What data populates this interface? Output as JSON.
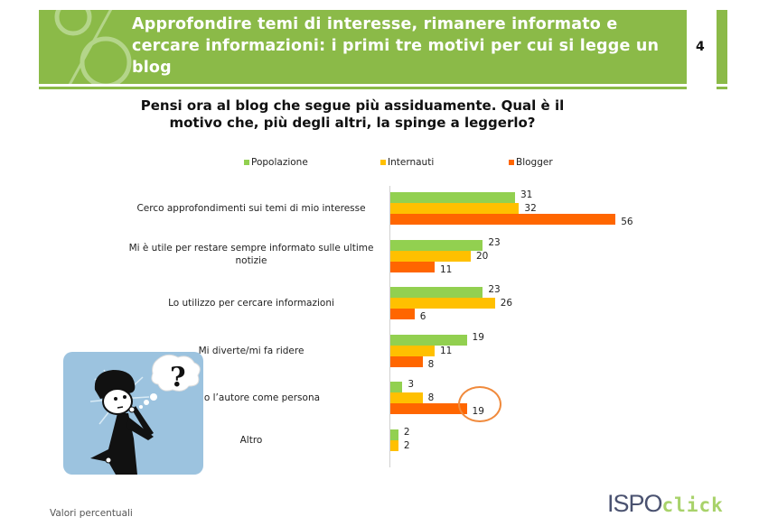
{
  "header": {
    "title": "Approfondire temi di interesse, rimanere informato e cercare informazioni: i primi tre motivi per cui si legge un blog",
    "page_number": "4",
    "accent_color": "#8bba48"
  },
  "question": "Pensi ora al blog che segue più assiduamente. Qual è il motivo che, più degli altri, la spinge a leggerlo?",
  "legend": [
    {
      "label": "Popolazione",
      "color": "#92d050"
    },
    {
      "label": "Internauti",
      "color": "#ffc000"
    },
    {
      "label": "Blogger",
      "color": "#ff6600"
    }
  ],
  "footer": {
    "note": "Valori percentuali",
    "logo_left": "ISPO",
    "logo_right": "click"
  },
  "chart_data": {
    "type": "bar",
    "orientation": "horizontal",
    "title": "Pensi ora al blog che segue più assiduamente. Qual è il motivo che, più degli altri, la spinge a leggerlo?",
    "xlabel": "",
    "ylabel": "",
    "unit": "Valori percentuali",
    "categories": [
      "Cerco approfondimenti sui temi di mio interesse",
      "Mi è utile per restare sempre informato sulle ultime notizie",
      "Lo utilizzo per cercare informazioni",
      "Mi diverte/mi fa ridere",
      "Stimo l’autore come persona",
      "Altro"
    ],
    "series": [
      {
        "name": "Popolazione",
        "color": "#92d050",
        "values": [
          31,
          23,
          23,
          19,
          3,
          2
        ]
      },
      {
        "name": "Internauti",
        "color": "#ffc000",
        "values": [
          32,
          20,
          26,
          11,
          8,
          2
        ]
      },
      {
        "name": "Blogger",
        "color": "#ff6600",
        "values": [
          56,
          11,
          6,
          8,
          19,
          null
        ]
      }
    ],
    "legend_position": "top",
    "grid": false,
    "data_labels": true,
    "annotations": [
      {
        "type": "circle",
        "target": "Blogger - Stimo l’autore come persona",
        "value": 19
      }
    ]
  }
}
